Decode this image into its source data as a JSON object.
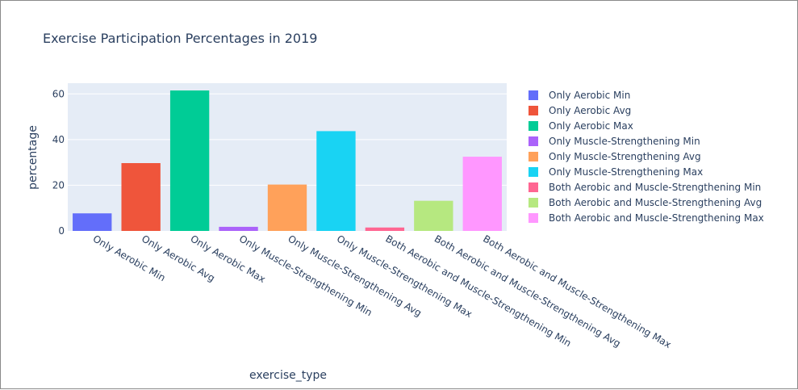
{
  "chart_data": {
    "type": "bar",
    "title": "Exercise Participation Percentages in 2019",
    "xlabel": "exercise_type",
    "ylabel": "percentage",
    "ylim": [
      0,
      64.7
    ],
    "yticks": [
      0,
      20,
      40,
      60
    ],
    "grid": true,
    "legend_position": "right",
    "categories": [
      "Only Aerobic Min",
      "Only Aerobic Avg",
      "Only Aerobic Max",
      "Only Muscle-Strengthening Min",
      "Only Muscle-Strengthening Avg",
      "Only Muscle-Strengthening Max",
      "Both Aerobic and Muscle-Strengthening Min",
      "Both Aerobic and Muscle-Strengthening Avg",
      "Both Aerobic and Muscle-Strengthening Max"
    ],
    "values": [
      7.7,
      29.7,
      61.5,
      1.8,
      20.3,
      43.7,
      1.5,
      13.2,
      32.5
    ],
    "colors": [
      "#636efa",
      "#ef553b",
      "#00cc96",
      "#ab63fa",
      "#ffa15a",
      "#19d3f3",
      "#ff6692",
      "#b6e880",
      "#ff97ff"
    ]
  }
}
